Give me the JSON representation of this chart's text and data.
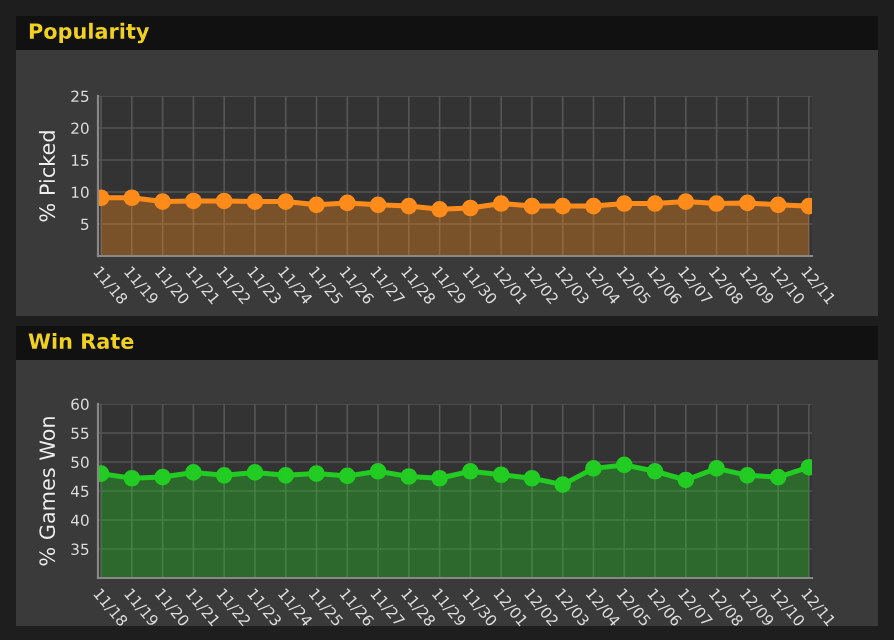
{
  "chart_data": [
    {
      "type": "area",
      "title": "Popularity",
      "ylabel": "% Picked",
      "categories": [
        "11/18",
        "11/19",
        "11/20",
        "11/21",
        "11/22",
        "11/23",
        "11/24",
        "11/25",
        "11/26",
        "11/27",
        "11/28",
        "11/29",
        "11/30",
        "12/01",
        "12/02",
        "12/03",
        "12/04",
        "12/05",
        "12/06",
        "12/07",
        "12/08",
        "12/09",
        "12/10",
        "12/11"
      ],
      "series": [
        {
          "color": "#ff8c1a",
          "values": [
            9.1,
            9.1,
            8.5,
            8.6,
            8.6,
            8.5,
            8.5,
            8.0,
            8.3,
            8.0,
            7.8,
            7.3,
            7.5,
            8.2,
            7.8,
            7.8,
            7.8,
            8.2,
            8.2,
            8.5,
            8.2,
            8.3,
            8.0,
            7.8
          ]
        }
      ],
      "ylim": [
        0,
        25
      ],
      "yticks": [
        {
          "value": 0,
          "label": null
        },
        5,
        10,
        15,
        20,
        25
      ],
      "grid": true,
      "marker": "circle",
      "legend": false
    },
    {
      "type": "area",
      "title": "Win Rate",
      "ylabel": "% Games Won",
      "categories": [
        "11/18",
        "11/19",
        "11/20",
        "11/21",
        "11/22",
        "11/23",
        "11/24",
        "11/25",
        "11/26",
        "11/27",
        "11/28",
        "11/29",
        "11/30",
        "12/01",
        "12/02",
        "12/03",
        "12/04",
        "12/05",
        "12/06",
        "12/07",
        "12/08",
        "12/09",
        "12/10",
        "12/11"
      ],
      "series": [
        {
          "color": "#22cc22",
          "values": [
            48.0,
            47.2,
            47.4,
            48.2,
            47.7,
            48.2,
            47.7,
            48.0,
            47.6,
            48.4,
            47.5,
            47.2,
            48.4,
            47.8,
            47.2,
            46.1,
            48.9,
            49.5,
            48.4,
            46.9,
            48.9,
            47.7,
            47.4,
            49.1
          ]
        }
      ],
      "ylim": [
        30,
        60
      ],
      "yticks": [
        {
          "value": 30,
          "label": null
        },
        35,
        40,
        45,
        50,
        55,
        60
      ],
      "grid": true,
      "marker": "circle",
      "legend": false
    }
  ]
}
